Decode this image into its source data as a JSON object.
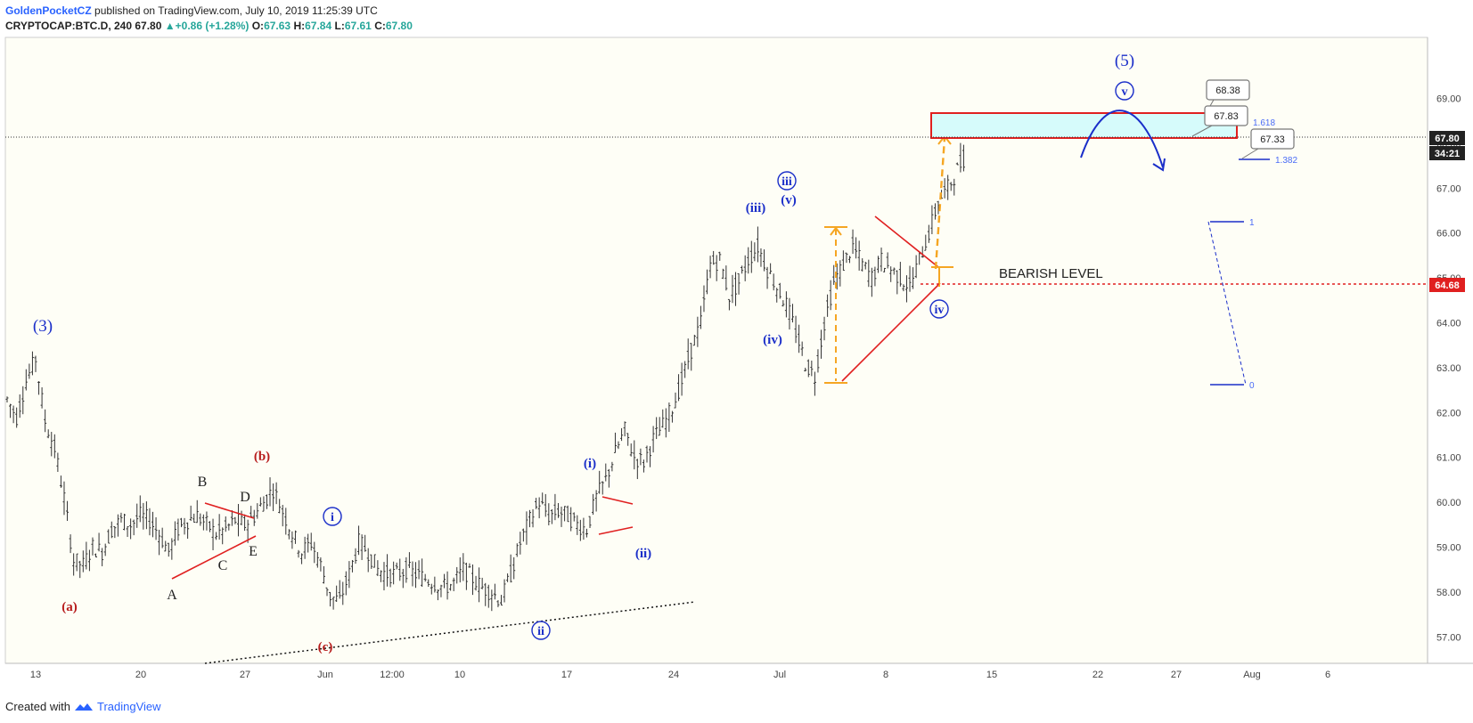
{
  "header": {
    "author": "GoldenPocketCZ",
    "published": "published on TradingView.com, July 10, 2019 11:25:39 UTC",
    "symbol": "CRYPTOCAP:BTC.D, 240",
    "last": "67.80",
    "change": "+0.86 (+1.28%)",
    "o_label": "O:",
    "o": "67.63",
    "h_label": "H:",
    "h": "67.84",
    "l_label": "L:",
    "l": "67.61",
    "c_label": "C:",
    "c": "67.80"
  },
  "footer": {
    "created": "Created with",
    "brand": "TradingView"
  },
  "colors": {
    "bg": "#fefef6",
    "candle": "#333333",
    "blue": "#1a2ec9",
    "red": "#e02020",
    "orange": "#f5a623",
    "cyan": "#d6fbfb"
  },
  "chart_data": {
    "type": "candlestick",
    "symbol": "CRYPTOCAP:BTC.D",
    "interval": "240",
    "ylim": [
      56.4,
      70.1
    ],
    "y_ticks": [
      "57.00",
      "58.00",
      "59.00",
      "60.00",
      "61.00",
      "62.00",
      "63.00",
      "64.00",
      "65.00",
      "66.00",
      "67.00",
      "68.00",
      "69.00"
    ],
    "x_ticks": [
      "13",
      "20",
      "27",
      "Jun",
      "12:00",
      "10",
      "17",
      "24",
      "Jul",
      "8",
      "15",
      "22",
      "27",
      "Aug",
      "6"
    ],
    "price_tags": {
      "last": "67.80",
      "countdown": "34:21",
      "bearish": "64.68"
    },
    "close_path": [
      [
        "May 12",
        62.3
      ],
      [
        "May 13",
        61.9
      ],
      [
        "May 13",
        62.7
      ],
      [
        "May 14",
        63.2
      ],
      [
        "May 14",
        61.8
      ],
      [
        "May 15",
        61.2
      ],
      [
        "May 15",
        60.1
      ],
      [
        "May 16",
        58.7
      ],
      [
        "May 16",
        58.6
      ],
      [
        "May 17",
        59.0
      ],
      [
        "May 17",
        58.9
      ],
      [
        "May 18",
        59.4
      ],
      [
        "May 18",
        59.6
      ],
      [
        "May 19",
        59.5
      ],
      [
        "May 19",
        59.7
      ],
      [
        "May 20",
        59.6
      ],
      [
        "May 20",
        59.3
      ],
      [
        "May 21",
        58.9
      ],
      [
        "May 21",
        59.4
      ],
      [
        "May 22",
        59.6
      ],
      [
        "May 22",
        59.7
      ],
      [
        "May 23",
        59.5
      ],
      [
        "May 23",
        59.3
      ],
      [
        "May 24",
        59.4
      ],
      [
        "May 24",
        59.6
      ],
      [
        "May 25",
        59.5
      ],
      [
        "May 25",
        59.7
      ],
      [
        "May 26",
        60.0
      ],
      [
        "May 26",
        60.3
      ],
      [
        "May 27",
        59.8
      ],
      [
        "May 27",
        59.3
      ],
      [
        "May 28",
        58.9
      ],
      [
        "May 28",
        59.1
      ],
      [
        "May 29",
        58.6
      ],
      [
        "May 29",
        57.9
      ],
      [
        "May 30",
        57.8
      ],
      [
        "May 30",
        58.4
      ],
      [
        "May 31",
        59.1
      ],
      [
        "May 31",
        58.9
      ],
      [
        "Jun 1",
        58.5
      ],
      [
        "Jun 2",
        58.4
      ],
      [
        "Jun 3",
        58.4
      ],
      [
        "Jun 4",
        58.5
      ],
      [
        "Jun 5",
        58.4
      ],
      [
        "Jun 6",
        58.3
      ],
      [
        "Jun 7",
        58.2
      ],
      [
        "Jun 8",
        58.1
      ],
      [
        "Jun 9",
        58.2
      ],
      [
        "Jun 10",
        58.5
      ],
      [
        "Jun 11",
        58.3
      ],
      [
        "Jun 12",
        58.1
      ],
      [
        "Jun 13",
        58.0
      ],
      [
        "Jun 13",
        57.8
      ],
      [
        "Jun 14",
        58.4
      ],
      [
        "Jun 15",
        59.1
      ],
      [
        "Jun 16",
        59.6
      ],
      [
        "Jun 17",
        60.0
      ],
      [
        "Jun 17",
        59.7
      ],
      [
        "Jun 18",
        59.8
      ],
      [
        "Jun 19",
        59.7
      ],
      [
        "Jun 19",
        59.5
      ],
      [
        "Jun 20",
        59.4
      ],
      [
        "Jun 20",
        60.1
      ],
      [
        "Jun 21",
        60.5
      ],
      [
        "Jun 22",
        61.1
      ],
      [
        "Jun 22",
        61.6
      ],
      [
        "Jun 23",
        61.0
      ],
      [
        "Jun 23",
        60.9
      ],
      [
        "Jun 24",
        61.4
      ],
      [
        "Jun 25",
        61.7
      ],
      [
        "Jun 25",
        62.1
      ],
      [
        "Jun 26",
        62.7
      ],
      [
        "Jun 26",
        63.4
      ],
      [
        "Jun 27",
        64.0
      ],
      [
        "Jun 27",
        65.3
      ],
      [
        "Jun 27",
        65.4
      ],
      [
        "Jun 28",
        64.6
      ],
      [
        "Jun 28",
        64.9
      ],
      [
        "Jun 29",
        65.4
      ],
      [
        "Jun 29",
        65.7
      ],
      [
        "Jun 30",
        65.2
      ],
      [
        "Jun 30",
        64.8
      ],
      [
        "Jul 1",
        64.4
      ],
      [
        "Jul 1",
        63.8
      ],
      [
        "Jul 2",
        63.1
      ],
      [
        "Jul 2",
        62.8
      ],
      [
        "Jul 3",
        64.0
      ],
      [
        "Jul 3",
        64.9
      ],
      [
        "Jul 4",
        65.3
      ],
      [
        "Jul 4",
        65.7
      ],
      [
        "Jul 5",
        65.3
      ],
      [
        "Jul 5",
        65.0
      ],
      [
        "Jul 6",
        65.4
      ],
      [
        "Jul 6",
        65.2
      ],
      [
        "Jul 7",
        65.0
      ],
      [
        "Jul 7",
        64.8
      ],
      [
        "Jul 8",
        65.4
      ],
      [
        "Jul 8",
        66.0
      ],
      [
        "Jul 9",
        66.7
      ],
      [
        "Jul 9",
        67.0
      ],
      [
        "Jul 10",
        67.4
      ],
      [
        "Jul 10",
        67.8
      ]
    ],
    "wave_labels": [
      {
        "text": "(3)",
        "date": "May 14",
        "price": 63.8
      },
      {
        "text": "(a)",
        "date": "May 16",
        "price": 57.7
      },
      {
        "text": "A",
        "date": "May 21",
        "price": 58.0
      },
      {
        "text": "B",
        "date": "May 23",
        "price": 60.4
      },
      {
        "text": "C",
        "date": "May 24",
        "price": 58.6
      },
      {
        "text": "D",
        "date": "May 26",
        "price": 60.1
      },
      {
        "text": "E",
        "date": "May 26",
        "price": 59.0
      },
      {
        "text": "(b)",
        "date": "May 27",
        "price": 60.9
      },
      {
        "text": "(c)",
        "date": "May 30",
        "price": 56.9
      },
      {
        "text": "i",
        "date": "May 31",
        "price": 59.7
      },
      {
        "text": "ii",
        "date": "Jun 13",
        "price": 57.3
      },
      {
        "text": "(i)",
        "date": "Jun 17",
        "price": 60.8
      },
      {
        "text": "(ii)",
        "date": "Jun 20",
        "price": 58.9
      },
      {
        "text": "(iii)",
        "date": "Jun 27",
        "price": 66.2
      },
      {
        "text": "iii",
        "date": "Jun 29",
        "price": 66.8
      },
      {
        "text": "(v)",
        "date": "Jun 29",
        "price": 66.4
      },
      {
        "text": "(iv)",
        "date": "Jun 28",
        "price": 64.4
      },
      {
        "text": "iv",
        "date": "Jul 8",
        "price": 64.1
      },
      {
        "text": "(5)",
        "date": "Jul 25",
        "price": 69.3
      },
      {
        "text": "v",
        "date": "Jul 25",
        "price": 68.7
      }
    ],
    "annotations": {
      "bearish_level": {
        "text": "BEARISH LEVEL",
        "price": 64.68
      },
      "target_zone": {
        "from": 67.83,
        "to": 68.38
      },
      "callouts": [
        "68.38",
        "67.83",
        "67.33"
      ],
      "fib": [
        {
          "label": "1.618",
          "price": 68.13
        },
        {
          "label": "1.382",
          "price": 67.35
        },
        {
          "label": "1",
          "price": 66.04
        },
        {
          "label": "0",
          "price": 62.57
        }
      ]
    }
  }
}
